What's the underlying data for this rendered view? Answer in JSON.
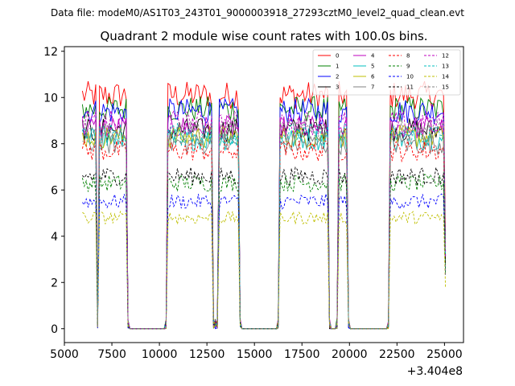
{
  "chart_data": {
    "type": "line",
    "suptitle": "Data file: modeM0/AS1T03_243T01_9000003918_27293cztM0_level2_quad_clean.evt",
    "title": "Quadrant 2 module wise count rates with 100.0s bins.",
    "xlabel": "",
    "ylabel": "",
    "x_offset_label": "+3.404e8",
    "xlim": [
      5000,
      26000
    ],
    "ylim": [
      -0.6,
      12.2
    ],
    "xticks": [
      5000,
      7500,
      10000,
      12500,
      15000,
      17500,
      20000,
      22500,
      25000
    ],
    "xtick_labels": [
      "5000",
      "7500",
      "10000",
      "12500",
      "15000",
      "17500",
      "20000",
      "22500",
      "25000"
    ],
    "yticks": [
      0,
      2,
      4,
      6,
      8,
      10,
      12
    ],
    "ytick_labels": [
      "0",
      "2",
      "4",
      "6",
      "8",
      "10",
      "12"
    ],
    "legend_position": "top-right",
    "series": [
      {
        "name": "0",
        "color": "#ff0000",
        "dash": "solid",
        "level": 10.1
      },
      {
        "name": "1",
        "color": "#008000",
        "dash": "solid",
        "level": 9.5
      },
      {
        "name": "2",
        "color": "#0000ff",
        "dash": "solid",
        "level": 9.4
      },
      {
        "name": "3",
        "color": "#000000",
        "dash": "solid",
        "level": 8.6
      },
      {
        "name": "4",
        "color": "#bf00bf",
        "dash": "solid",
        "level": 8.7
      },
      {
        "name": "5",
        "color": "#00bfbf",
        "dash": "solid",
        "level": 8.2
      },
      {
        "name": "6",
        "color": "#bfbf00",
        "dash": "solid",
        "level": 8.3
      },
      {
        "name": "7",
        "color": "#808080",
        "dash": "solid",
        "level": 8.0
      },
      {
        "name": "8",
        "color": "#ff0000",
        "dash": "dashed",
        "level": 7.7
      },
      {
        "name": "9",
        "color": "#008000",
        "dash": "dashed",
        "level": 6.3
      },
      {
        "name": "10",
        "color": "#0000ff",
        "dash": "dashed",
        "level": 5.5
      },
      {
        "name": "11",
        "color": "#000000",
        "dash": "dashed",
        "level": 6.6
      },
      {
        "name": "12",
        "color": "#bf00bf",
        "dash": "dashed",
        "level": 8.9
      },
      {
        "name": "13",
        "color": "#00bfbf",
        "dash": "dashed",
        "level": 8.4
      },
      {
        "name": "14",
        "color": "#bfbf00",
        "dash": "dashed",
        "level": 4.8
      },
      {
        "name": "15",
        "color": "#808080",
        "dash": "dashed",
        "level": 8.6
      }
    ],
    "active_intervals": [
      [
        5950,
        6650
      ],
      [
        6850,
        8250
      ],
      [
        10450,
        12750
      ],
      [
        13150,
        14150
      ],
      [
        16350,
        18850
      ],
      [
        19450,
        19850
      ],
      [
        22150,
        25050
      ]
    ],
    "zero_intervals": [
      [
        8400,
        10300
      ],
      [
        14300,
        16200
      ],
      [
        19000,
        19300
      ],
      [
        20000,
        22000
      ]
    ],
    "bin_size": 100
  }
}
